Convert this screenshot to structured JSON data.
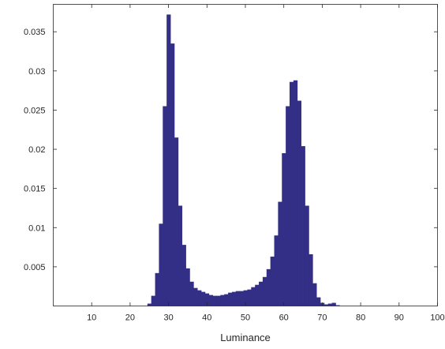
{
  "chart_data": {
    "type": "bar",
    "title": "",
    "xlabel": "Luminance",
    "ylabel": "",
    "xlim": [
      0,
      100
    ],
    "ylim": [
      0,
      0.0385
    ],
    "grid": false,
    "x_ticks": [
      10,
      20,
      30,
      40,
      50,
      60,
      70,
      80,
      90,
      100
    ],
    "x_tick_labels": [
      "10",
      "20",
      "30",
      "40",
      "50",
      "60",
      "70",
      "80",
      "90",
      "100"
    ],
    "y_ticks": [
      0.005,
      0.01,
      0.015,
      0.02,
      0.025,
      0.03,
      0.035
    ],
    "y_tick_labels": [
      "0.005",
      "0.01",
      "0.015",
      "0.02",
      "0.025",
      "0.03",
      "0.035"
    ],
    "bar_color": "#332f86",
    "series": [
      {
        "x": [
          25,
          26,
          27,
          28,
          29,
          30,
          31,
          32,
          33,
          34,
          35,
          36,
          37,
          38,
          39,
          40,
          41,
          42,
          43,
          44,
          45,
          46,
          47,
          48,
          49,
          50,
          51,
          52,
          53,
          54,
          55,
          56,
          57,
          58,
          59,
          60,
          61,
          62,
          63,
          64,
          65,
          66,
          67,
          68,
          69,
          70,
          71,
          72,
          73,
          74
        ],
        "values": [
          0.0003,
          0.0013,
          0.0042,
          0.0105,
          0.0255,
          0.0372,
          0.0335,
          0.0215,
          0.0128,
          0.0078,
          0.0048,
          0.0031,
          0.0023,
          0.002,
          0.0018,
          0.0016,
          0.0014,
          0.0013,
          0.0013,
          0.0014,
          0.0015,
          0.0017,
          0.0018,
          0.0019,
          0.0019,
          0.002,
          0.0021,
          0.0024,
          0.0027,
          0.0031,
          0.0037,
          0.0047,
          0.0063,
          0.009,
          0.0133,
          0.0195,
          0.0255,
          0.0286,
          0.0288,
          0.0262,
          0.0204,
          0.0128,
          0.0066,
          0.0029,
          0.0011,
          0.0004,
          0.0002,
          0.0003,
          0.0004,
          0.0001
        ]
      }
    ]
  }
}
